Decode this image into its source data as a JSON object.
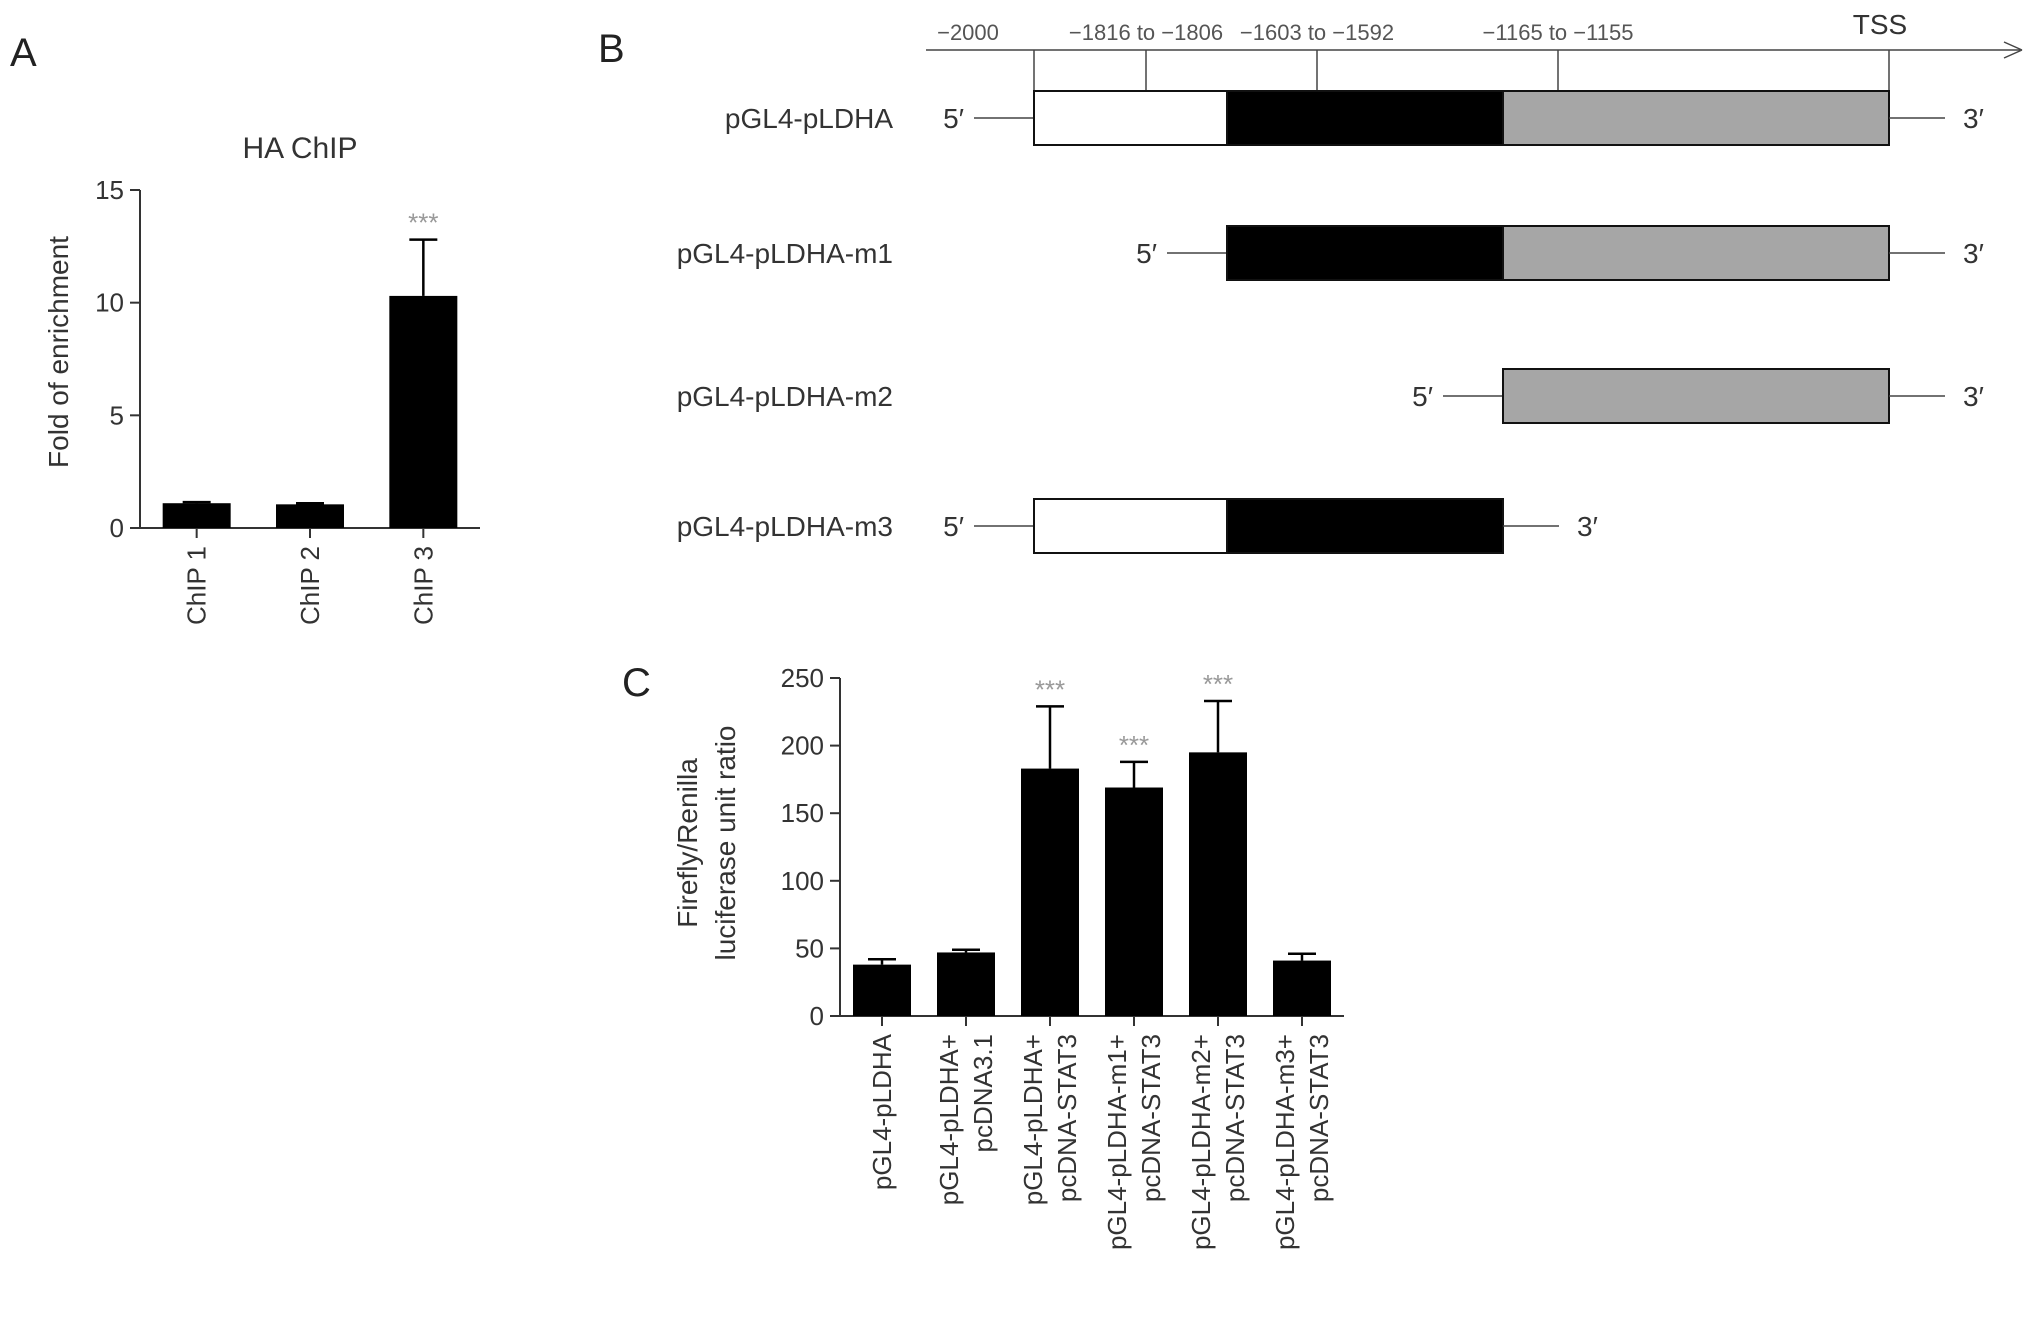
{
  "panels": {
    "a": "A",
    "b": "B",
    "c": "C"
  },
  "chart_data": [
    {
      "type": "bar",
      "title": "HA ChIP",
      "xlabel": "",
      "ylabel": "Fold of enrichment",
      "ylim": [
        0,
        15
      ],
      "yticks": [
        0,
        5,
        10,
        15
      ],
      "categories": [
        "ChIP 1",
        "ChIP 2",
        "ChIP 3"
      ],
      "values": [
        1.1,
        1.05,
        10.3
      ],
      "errors": [
        0.05,
        0.05,
        2.5
      ],
      "significance": [
        "",
        "",
        "***"
      ],
      "grid": false
    },
    {
      "type": "bar",
      "title": "",
      "xlabel": "",
      "ylabel": [
        "Firefly/Renilla",
        "luciferase unit ratio"
      ],
      "ylim": [
        0,
        250
      ],
      "yticks": [
        0,
        50,
        100,
        150,
        200,
        250
      ],
      "categories": [
        [
          "pGL4-pLDHA"
        ],
        [
          "pGL4-pLDHA+",
          "pcDNA3.1"
        ],
        [
          "pGL4-pLDHA+",
          "pcDNA-STAT3"
        ],
        [
          "pGL4-pLDHA-m1+",
          "pcDNA-STAT3"
        ],
        [
          "pGL4-pLDHA-m2+",
          "pcDNA-STAT3"
        ],
        [
          "pGL4-pLDHA-m3+",
          "pcDNA-STAT3"
        ]
      ],
      "values": [
        38,
        47,
        183,
        169,
        195,
        41
      ],
      "errors": [
        4,
        2,
        46,
        19,
        38,
        5
      ],
      "significance": [
        "",
        "",
        "***",
        "***",
        "***",
        ""
      ],
      "grid": false
    }
  ],
  "diagram": {
    "positions": [
      {
        "label": "−2000",
        "bp": -2000,
        "tick": false
      },
      {
        "label": "−1816 to −1806",
        "bp": -1811,
        "tick": true
      },
      {
        "label": "−1603 to −1592",
        "bp": -1597,
        "tick": true
      },
      {
        "label": "−1165 to −1155",
        "bp": -1160,
        "tick": true
      }
    ],
    "tss": "TSS",
    "five_prime": "5′",
    "three_prime": "3′",
    "constructs": [
      {
        "name": "pGL4-pLDHA",
        "segments": [
          "white",
          "black",
          "gray"
        ]
      },
      {
        "name": "pGL4-pLDHA-m1",
        "segments": [
          "black",
          "gray"
        ]
      },
      {
        "name": "pGL4-pLDHA-m2",
        "segments": [
          "gray"
        ]
      },
      {
        "name": "pGL4-pLDHA-m3",
        "segments": [
          "white",
          "black"
        ]
      }
    ],
    "colors": {
      "white": "#ffffff",
      "black": "#000000",
      "gray": "#a6a6a6"
    }
  }
}
